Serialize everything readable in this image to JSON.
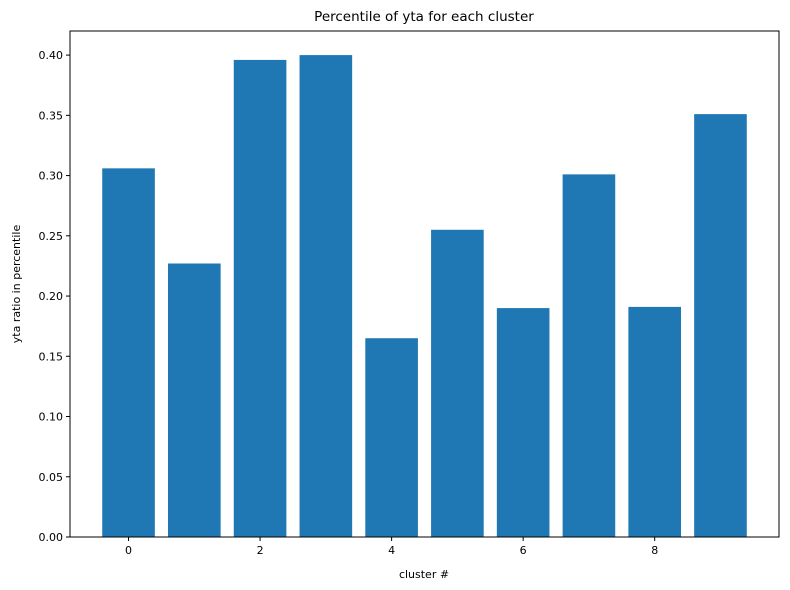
{
  "chart_data": {
    "type": "bar",
    "title": "Percentile of yta for each cluster",
    "xlabel": "cluster #",
    "ylabel": "yta ratio in percentile",
    "categories": [
      0,
      1,
      2,
      3,
      4,
      5,
      6,
      7,
      8,
      9
    ],
    "values": [
      0.306,
      0.227,
      0.396,
      0.4,
      0.165,
      0.255,
      0.19,
      0.301,
      0.191,
      0.351
    ],
    "xticks": [
      0,
      2,
      4,
      6,
      8
    ],
    "yticks": [
      0.0,
      0.05,
      0.1,
      0.15,
      0.2,
      0.25,
      0.3,
      0.35,
      0.4
    ],
    "xlim": [
      -0.89,
      9.89
    ],
    "ylim": [
      0,
      0.42
    ],
    "bar_color": "#1f77b4",
    "grid": false,
    "legend": false
  }
}
